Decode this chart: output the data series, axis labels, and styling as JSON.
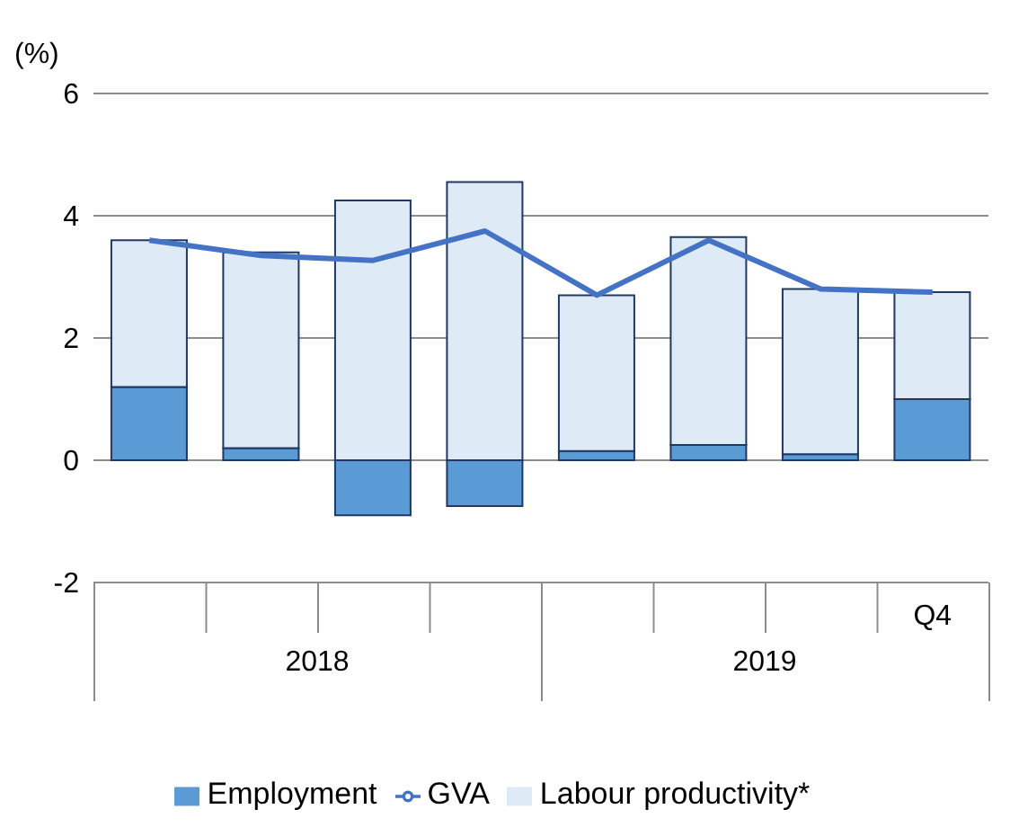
{
  "chart_data": {
    "type": "bar",
    "stacked": true,
    "ylabel": "(%)",
    "categories": [
      null,
      null,
      null,
      null,
      null,
      null,
      null,
      "Q4"
    ],
    "series": [
      {
        "name": "Employment",
        "color": "#5b9bd5",
        "values": [
          1.2,
          0.2,
          -0.9,
          -0.75,
          0.15,
          0.25,
          0.1,
          1.0
        ]
      },
      {
        "name": "Labour productivity*",
        "color": "#deebf7",
        "values": [
          2.4,
          3.2,
          4.25,
          4.55,
          2.55,
          3.4,
          2.7,
          1.75
        ]
      },
      {
        "name": "GVA",
        "type": "line",
        "color": "#4472c4",
        "values": [
          3.6,
          3.35,
          3.27,
          3.75,
          2.7,
          3.6,
          2.8,
          2.75
        ]
      }
    ],
    "ylim": [
      -2,
      6
    ],
    "yticks": [
      -2,
      0,
      2,
      4,
      6
    ],
    "grid": "y",
    "legend": "bottom",
    "marker": "none",
    "annotations": [
      "2018",
      "2019"
    ]
  }
}
